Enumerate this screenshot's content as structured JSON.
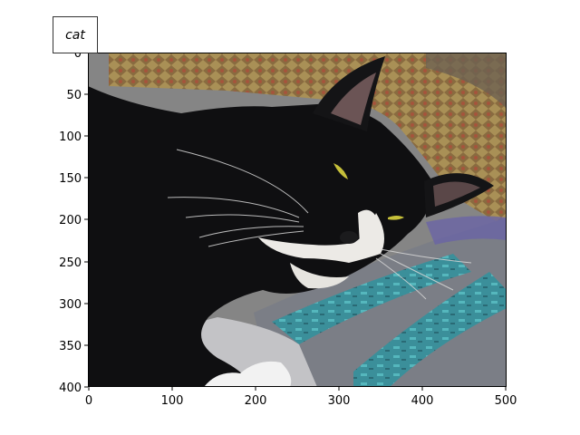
{
  "image": {
    "subject": "black-and-white tuxedo cat sleeping on a patterned cushion and a blue-gray blanket",
    "extent": {
      "x": [
        0,
        500
      ],
      "y": [
        0,
        400
      ]
    },
    "y_inverted": true
  },
  "annotation": {
    "label": "cat"
  },
  "axes": {
    "x_ticks": [
      "0",
      "100",
      "200",
      "300",
      "400",
      "500"
    ],
    "y_ticks": [
      "0",
      "50",
      "100",
      "150",
      "200",
      "250",
      "300",
      "350",
      "400"
    ]
  },
  "colors": {
    "fur_black": "#0c0c0d",
    "fur_white": "#eceae6",
    "cushion_tan": "#b39a5e",
    "blanket_teal": "#3a9aa2",
    "blanket_gray": "#7d8087",
    "eye_yellow": "#c6c03a"
  }
}
